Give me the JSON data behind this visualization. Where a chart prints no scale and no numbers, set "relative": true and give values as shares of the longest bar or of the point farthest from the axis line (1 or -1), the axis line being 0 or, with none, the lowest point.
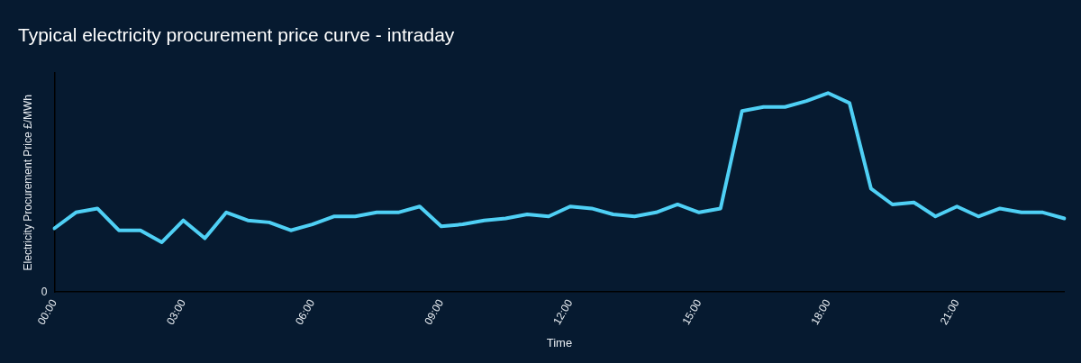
{
  "chart_data": {
    "type": "line",
    "title": "Typical electricity procurement price curve - intraday",
    "xlabel": "Time",
    "ylabel": "Electricity Procurement Price £/MWh",
    "relative": true,
    "annotations": [
      "0"
    ],
    "grid": false,
    "legend": false,
    "marker": "none",
    "line_style": "solid",
    "categories": [
      "00:00",
      null,
      null,
      null,
      null,
      null,
      "03:00",
      null,
      null,
      null,
      null,
      null,
      "06:00",
      null,
      null,
      null,
      null,
      null,
      "09:00",
      null,
      null,
      null,
      null,
      null,
      "12:00",
      null,
      null,
      null,
      null,
      null,
      "15:00",
      null,
      null,
      null,
      null,
      null,
      "18:00",
      null,
      null,
      null,
      null,
      null,
      "21:00",
      null,
      null,
      null,
      null,
      null
    ],
    "series": [
      {
        "color": "#4fd0f5",
        "values": [
          0.32,
          0.4,
          0.42,
          0.31,
          0.31,
          0.25,
          0.36,
          0.27,
          0.4,
          0.36,
          0.35,
          0.31,
          0.34,
          0.38,
          0.38,
          0.4,
          0.4,
          0.43,
          0.33,
          0.34,
          0.36,
          0.37,
          0.39,
          0.38,
          0.43,
          0.42,
          0.39,
          0.38,
          0.4,
          0.44,
          0.4,
          0.42,
          0.91,
          0.93,
          0.93,
          0.96,
          1,
          0.95,
          0.52,
          0.44,
          0.45,
          0.38,
          0.43,
          0.38,
          0.42,
          0.4,
          0.4,
          0.37
        ]
      }
    ]
  }
}
